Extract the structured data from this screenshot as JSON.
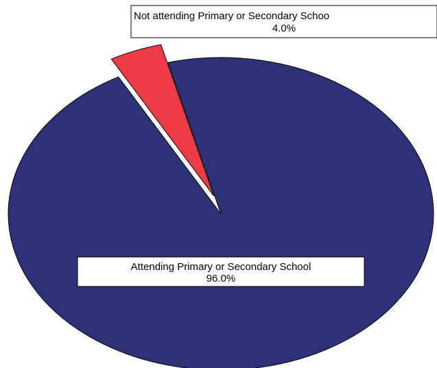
{
  "chart_data": {
    "type": "pie",
    "title": "",
    "legend": "none",
    "slices": [
      {
        "label": "Attending Primary or Secondary School",
        "value": 96.0,
        "value_label": "96.0%",
        "color": "#2E3177",
        "exploded": false
      },
      {
        "label": "Not attending Primary or Secondary School",
        "visible_label": "Not attending Primary or Secondary Schoo",
        "value": 4.0,
        "value_label": "4.0%",
        "color": "#EE3B45",
        "exploded": true
      }
    ]
  }
}
